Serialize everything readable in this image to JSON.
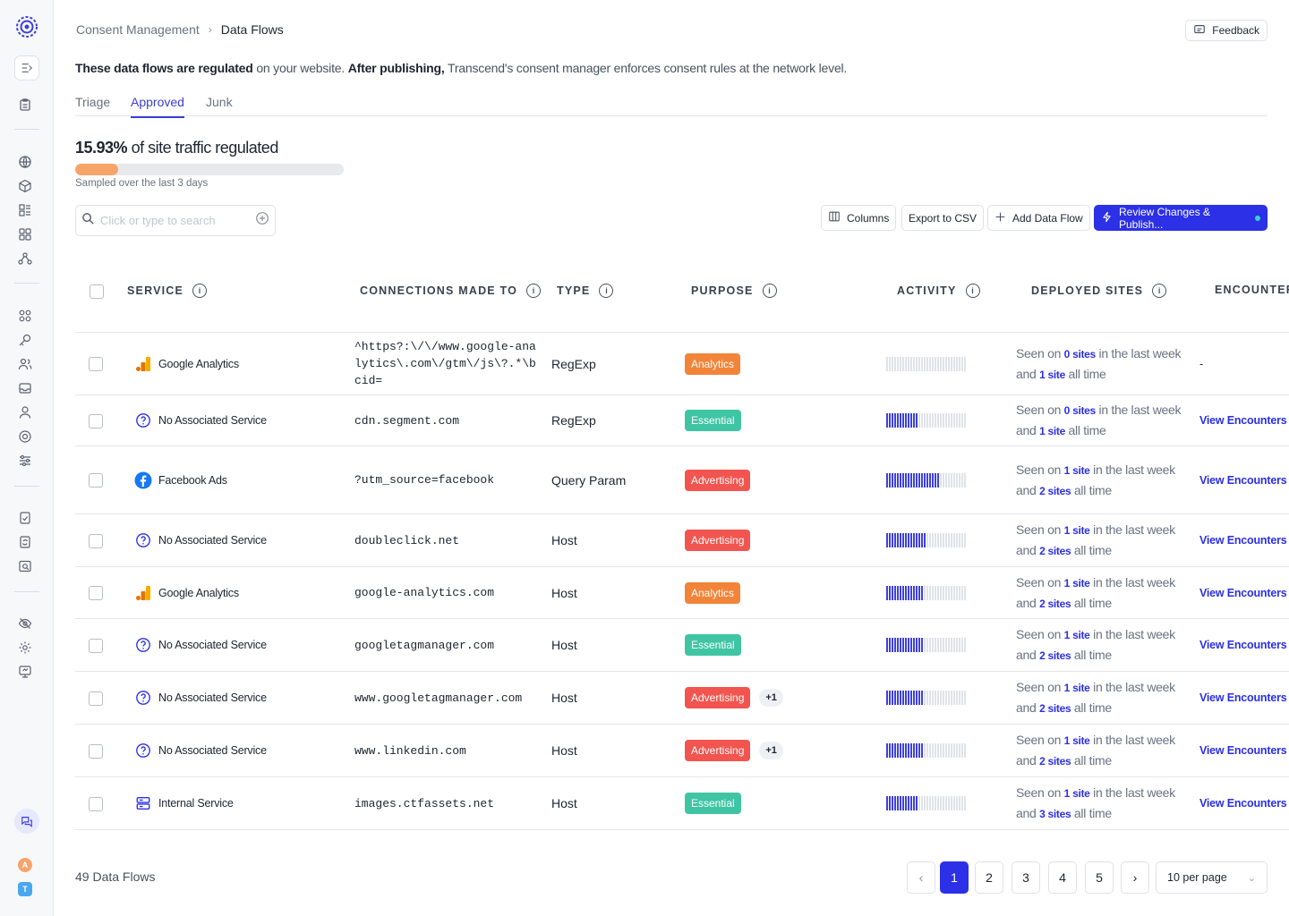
{
  "breadcrumb": {
    "parent": "Consent Management",
    "current": "Data Flows"
  },
  "feedback_label": "Feedback",
  "intro": {
    "b1": "These data flows are regulated",
    "t1": " on your website. ",
    "b2": "After publishing,",
    "t2": " Transcend's consent manager enforces consent rules at the network level."
  },
  "tabs": [
    "Triage",
    "Approved",
    "Junk"
  ],
  "active_tab": "Approved",
  "traffic": {
    "percent": "15.93%",
    "label": " of site traffic regulated",
    "fraction": 0.1593,
    "sampled": "Sampled over the last 3 days"
  },
  "search": {
    "placeholder": "Click or type to search"
  },
  "toolbar": {
    "columns": "Columns",
    "export": "Export to CSV",
    "add": "Add Data Flow",
    "publish": "Review Changes & Publish..."
  },
  "columns": [
    "SERVICE",
    "CONNECTIONS MADE TO",
    "TYPE",
    "PURPOSE",
    "ACTIVITY",
    "DEPLOYED SITES",
    "ENCOUNTERS"
  ],
  "colors": {
    "accent": "#2c30e6",
    "analytics": "#f2843a",
    "essential": "#3fc5a4",
    "advertising": "#f2554f"
  },
  "rows": [
    {
      "service": "Google Analytics",
      "icon": "google-analytics-icon",
      "connection": "^https?:\\/\\/www.google-analytics\\.com\\/gtm\\/js\\?.*\\bcid=",
      "type": "RegExp",
      "purpose": "Analytics",
      "extra": "",
      "activity": 0,
      "s1a": "Seen on ",
      "s1n": "0 sites",
      "s1b": " in the last week",
      "s2a": "and ",
      "s2n": "1 site",
      "s2b": " all time",
      "encounters": "-"
    },
    {
      "service": "No Associated Service",
      "icon": "question-icon",
      "connection": "cdn.segment.com",
      "type": "RegExp",
      "purpose": "Essential",
      "extra": "",
      "activity": 0.4,
      "s1a": "Seen on ",
      "s1n": "0 sites",
      "s1b": " in the last week",
      "s2a": "and ",
      "s2n": "1 site",
      "s2b": " all time",
      "encounters": "View Encounters"
    },
    {
      "service": "Facebook Ads",
      "icon": "facebook-icon",
      "connection": "?utm_source=facebook",
      "type": "Query Param",
      "purpose": "Advertising",
      "extra": "",
      "activity": 0.65,
      "s1a": "Seen on ",
      "s1n": "1 site",
      "s1b": " in the last week",
      "s2a": "and ",
      "s2n": "2 sites",
      "s2b": " all time",
      "encounters": "View Encounters"
    },
    {
      "service": "No Associated Service",
      "icon": "question-icon",
      "connection": "doubleclick.net",
      "type": "Host",
      "purpose": "Advertising",
      "extra": "",
      "activity": 0.5,
      "s1a": "Seen on ",
      "s1n": "1 site",
      "s1b": " in the last week",
      "s2a": "and ",
      "s2n": "2 sites",
      "s2b": " all time",
      "encounters": "View Encounters"
    },
    {
      "service": "Google Analytics",
      "icon": "google-analytics-icon",
      "connection": "google-analytics.com",
      "type": "Host",
      "purpose": "Analytics",
      "extra": "",
      "activity": 0.45,
      "s1a": "Seen on ",
      "s1n": "1 site",
      "s1b": " in the last week",
      "s2a": "and ",
      "s2n": "2 sites",
      "s2b": " all time",
      "encounters": "View Encounters"
    },
    {
      "service": "No Associated Service",
      "icon": "question-icon",
      "connection": "googletagmanager.com",
      "type": "Host",
      "purpose": "Essential",
      "extra": "",
      "activity": 0.45,
      "s1a": "Seen on ",
      "s1n": "1 site",
      "s1b": " in the last week",
      "s2a": "and ",
      "s2n": "2 sites",
      "s2b": " all time",
      "encounters": "View Encounters"
    },
    {
      "service": "No Associated Service",
      "icon": "question-icon",
      "connection": "www.googletagmanager.com",
      "type": "Host",
      "purpose": "Advertising",
      "extra": "+1",
      "activity": 0.45,
      "s1a": "Seen on ",
      "s1n": "1 site",
      "s1b": " in the last week",
      "s2a": "and ",
      "s2n": "2 sites",
      "s2b": " all time",
      "encounters": "View Encounters"
    },
    {
      "service": "No Associated Service",
      "icon": "question-icon",
      "connection": "www.linkedin.com",
      "type": "Host",
      "purpose": "Advertising",
      "extra": "+1",
      "activity": 0.45,
      "s1a": "Seen on ",
      "s1n": "1 site",
      "s1b": " in the last week",
      "s2a": "and ",
      "s2n": "2 sites",
      "s2b": " all time",
      "encounters": "View Encounters"
    },
    {
      "service": "Internal Service",
      "icon": "server-icon",
      "connection": "images.ctfassets.net",
      "type": "Host",
      "purpose": "Essential",
      "extra": "",
      "activity": 0.4,
      "s1a": "Seen on ",
      "s1n": "1 site",
      "s1b": " in the last week",
      "s2a": "and ",
      "s2n": "3 sites",
      "s2b": " all time",
      "encounters": "View Encounters"
    }
  ],
  "footer": {
    "count": "49 Data Flows",
    "pages": [
      "1",
      "2",
      "3",
      "4",
      "5"
    ],
    "active_page": "1",
    "per_page": "10 per page"
  },
  "avatars": [
    "A",
    "T"
  ]
}
